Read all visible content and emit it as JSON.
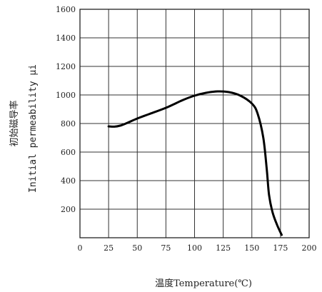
{
  "chart_data": {
    "type": "line",
    "title": "",
    "xlabel": "温度Temperature(℃)",
    "ylabel_cn": "初始磁导率",
    "ylabel_en": "Initial  permeability  μi",
    "xlim": [
      0,
      200
    ],
    "ylim": [
      0,
      1600
    ],
    "x_ticks": [
      0,
      25,
      50,
      75,
      100,
      125,
      150,
      175,
      200
    ],
    "x_tick_labels": [
      "0",
      "25",
      "50",
      "75",
      "100",
      "125",
      "150",
      "175",
      "200"
    ],
    "y_ticks": [
      200,
      400,
      600,
      800,
      1000,
      1200,
      1400,
      1600
    ],
    "y_tick_labels": [
      "200",
      "400",
      "600",
      "800",
      "1000",
      "1200",
      "1400",
      "1600"
    ],
    "grid": true,
    "series": [
      {
        "color": "#000000",
        "x": [
          25,
          30,
          35,
          40,
          50,
          60,
          75,
          90,
          100,
          110,
          120,
          130,
          140,
          150,
          155,
          160,
          163,
          165,
          168,
          172,
          176
        ],
        "y": [
          780,
          778,
          785,
          800,
          835,
          865,
          910,
          965,
          995,
          1015,
          1025,
          1020,
          995,
          940,
          870,
          700,
          480,
          300,
          180,
          90,
          20
        ]
      }
    ]
  }
}
